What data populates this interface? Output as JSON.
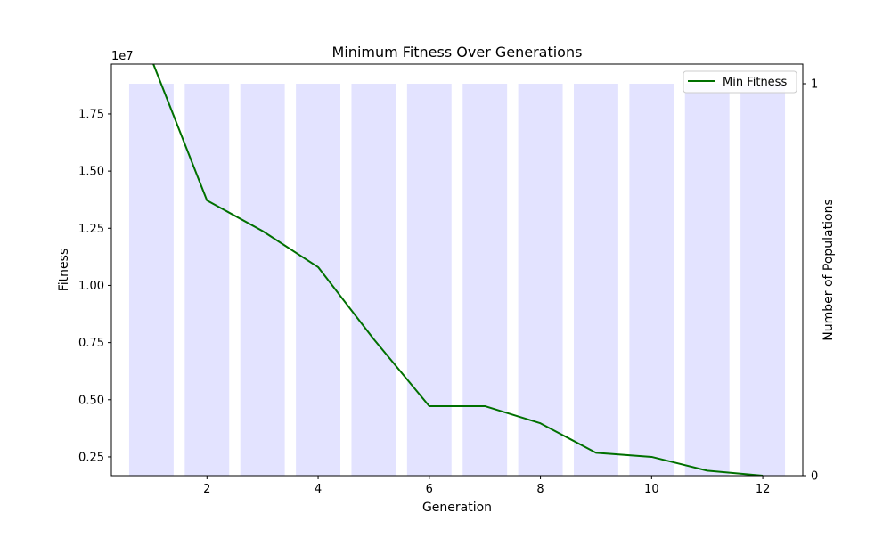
{
  "chart_data": {
    "type": "bar+line",
    "title": "Minimum Fitness Over Generations",
    "xlabel": "Generation",
    "ylabel": "Fitness",
    "y2label": "Number of Populations",
    "y_offset_label": "1e7",
    "x": [
      1,
      2,
      3,
      4,
      5,
      6,
      7,
      8,
      9,
      10,
      11,
      12
    ],
    "xlim": [
      0.28,
      12.72
    ],
    "ylim": [
      1.68,
      19.68
    ],
    "y2lim": [
      0,
      1.05
    ],
    "x_ticks": [
      2,
      4,
      6,
      8,
      10,
      12
    ],
    "x_tick_labels": [
      "2",
      "4",
      "6",
      "8",
      "10",
      "12"
    ],
    "y_ticks": [
      2.5,
      5.0,
      7.5,
      10.0,
      12.5,
      15.0,
      17.5
    ],
    "y_tick_labels": [
      "0.25",
      "0.50",
      "0.75",
      "1.00",
      "1.25",
      "1.50",
      "1.75"
    ],
    "y2_ticks": [
      0,
      1
    ],
    "y2_tick_labels": [
      "0",
      "1"
    ],
    "grid": false,
    "legend_position": "top-right",
    "series": [
      {
        "name": "Min Fitness",
        "type": "line",
        "axis": "left",
        "color": "#007000",
        "values": [
          19.9,
          13.72,
          12.38,
          10.8,
          7.65,
          4.72,
          4.72,
          3.97,
          2.68,
          2.5,
          1.9,
          1.68
        ]
      },
      {
        "type": "bar",
        "axis": "right",
        "color": "#e3e3ff",
        "values": [
          1,
          1,
          1,
          1,
          1,
          1,
          1,
          1,
          1,
          1,
          1,
          1
        ]
      }
    ]
  }
}
